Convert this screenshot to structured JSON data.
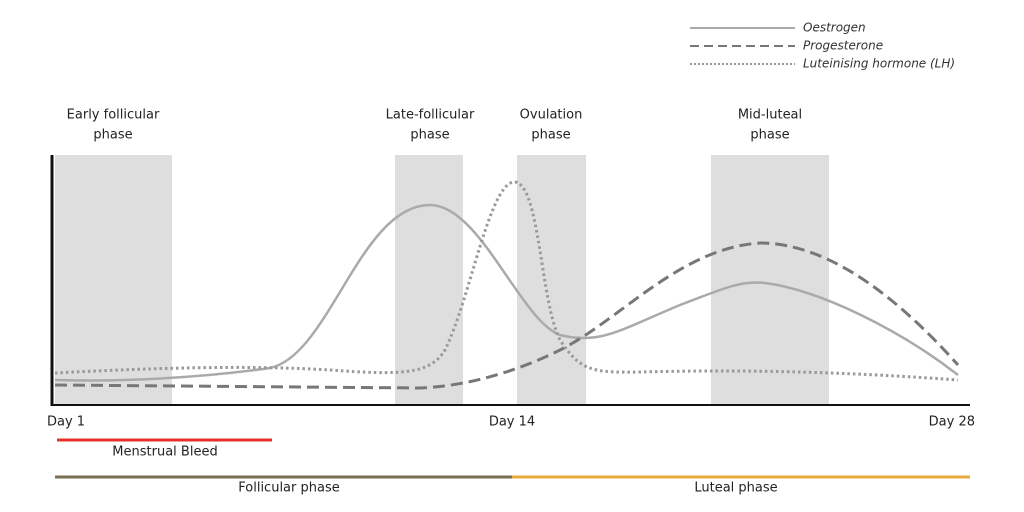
{
  "legend": [
    "Oestrogen",
    "Progesterone",
    "Luteinising hormone (LH)"
  ],
  "phases": [
    {
      "lines": [
        "Early follicular",
        "phase"
      ]
    },
    {
      "lines": [
        "Late-follicular",
        "phase"
      ]
    },
    {
      "lines": [
        "Ovulation",
        "phase"
      ]
    },
    {
      "lines": [
        "Mid-luteal",
        "phase"
      ]
    }
  ],
  "axis": {
    "start": "Day 1",
    "middle": "Day 14",
    "end": "Day 28"
  },
  "bleed": "Menstrual Bleed",
  "cycle": {
    "follicular": "Follicular phase",
    "luteal": "Luteal phase"
  }
}
